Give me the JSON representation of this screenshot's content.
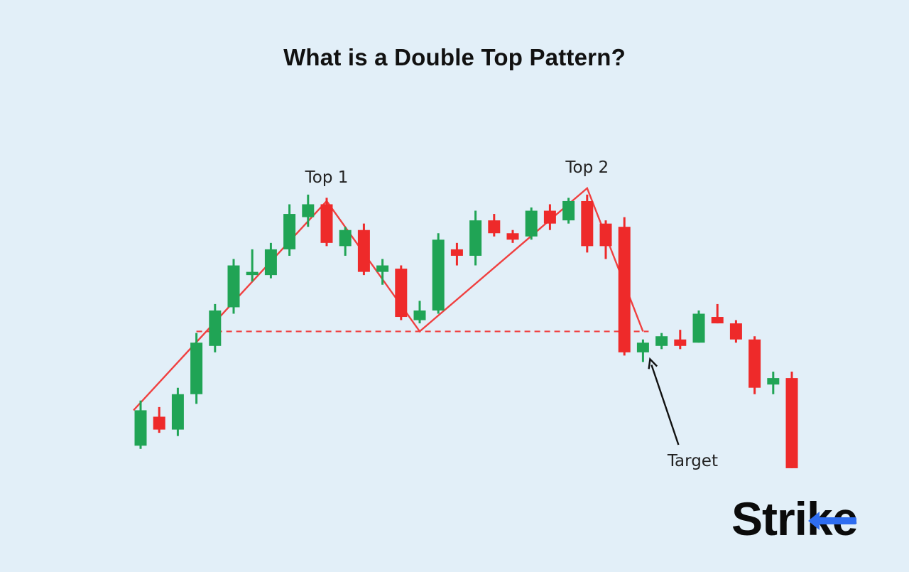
{
  "title": "What is a Double Top Pattern?",
  "brand": {
    "prefix": "Stri",
    "k": "k",
    "suffix": "e"
  },
  "colors": {
    "background": "#e2eff8",
    "bullish": "#20a455",
    "bearish": "#ee2a2a",
    "pattern_line": "#f04040",
    "arrow": "#111111",
    "brand_accent": "#2f6df0"
  },
  "chart_data": {
    "type": "candlestick",
    "title": "What is a Double Top Pattern?",
    "xlabel": "",
    "ylabel": "",
    "ylim": [
      0,
      100
    ],
    "grid": false,
    "axes_visible": false,
    "annotations": [
      {
        "text": "Top 1",
        "near_candle": 10
      },
      {
        "text": "Top 2",
        "near_candle": 24
      },
      {
        "text": "Target",
        "arrow_to_candle": 27
      }
    ],
    "neckline_level": 44.5,
    "pattern_points": [
      {
        "candle": 0,
        "value": 20
      },
      {
        "candle": 10,
        "value": 85
      },
      {
        "candle": 15,
        "value": 44.5
      },
      {
        "candle": 24,
        "value": 89
      },
      {
        "candle": 27,
        "value": 44.5
      }
    ],
    "candles": [
      {
        "open": 9,
        "high": 23,
        "low": 8,
        "close": 20
      },
      {
        "open": 18,
        "high": 21,
        "low": 13,
        "close": 14
      },
      {
        "open": 14,
        "high": 27,
        "low": 12,
        "close": 25
      },
      {
        "open": 25,
        "high": 44,
        "low": 22,
        "close": 41
      },
      {
        "open": 40,
        "high": 53,
        "low": 38,
        "close": 51
      },
      {
        "open": 52,
        "high": 67,
        "low": 50,
        "close": 65
      },
      {
        "open": 62,
        "high": 70,
        "low": 60,
        "close": 63
      },
      {
        "open": 62,
        "high": 72,
        "low": 61,
        "close": 70
      },
      {
        "open": 70,
        "high": 84,
        "low": 68,
        "close": 81
      },
      {
        "open": 80,
        "high": 87,
        "low": 77,
        "close": 84
      },
      {
        "open": 84,
        "high": 86,
        "low": 71,
        "close": 72
      },
      {
        "open": 71,
        "high": 77,
        "low": 68,
        "close": 76
      },
      {
        "open": 76,
        "high": 78,
        "low": 62,
        "close": 63
      },
      {
        "open": 63,
        "high": 67,
        "low": 59,
        "close": 65
      },
      {
        "open": 64,
        "high": 65,
        "low": 48,
        "close": 49
      },
      {
        "open": 48,
        "high": 54,
        "low": 47,
        "close": 51
      },
      {
        "open": 51,
        "high": 75,
        "low": 50,
        "close": 73
      },
      {
        "open": 70,
        "high": 72,
        "low": 65,
        "close": 68
      },
      {
        "open": 68,
        "high": 82,
        "low": 65,
        "close": 79
      },
      {
        "open": 79,
        "high": 81,
        "low": 74,
        "close": 75
      },
      {
        "open": 75,
        "high": 76,
        "low": 72,
        "close": 73
      },
      {
        "open": 74,
        "high": 83,
        "low": 73,
        "close": 82
      },
      {
        "open": 82,
        "high": 84,
        "low": 76,
        "close": 78
      },
      {
        "open": 79,
        "high": 86,
        "low": 78,
        "close": 85
      },
      {
        "open": 85,
        "high": 87,
        "low": 69,
        "close": 71
      },
      {
        "open": 78,
        "high": 79,
        "low": 67,
        "close": 71
      },
      {
        "open": 77,
        "high": 80,
        "low": 37,
        "close": 38
      },
      {
        "open": 38,
        "high": 42,
        "low": 35,
        "close": 41
      },
      {
        "open": 40,
        "high": 44,
        "low": 39,
        "close": 43
      },
      {
        "open": 42,
        "high": 45,
        "low": 39,
        "close": 40
      },
      {
        "open": 41,
        "high": 51,
        "low": 41,
        "close": 50
      },
      {
        "open": 49,
        "high": 53,
        "low": 47,
        "close": 47
      },
      {
        "open": 47,
        "high": 48,
        "low": 41,
        "close": 42
      },
      {
        "open": 42,
        "high": 43,
        "low": 25,
        "close": 27
      },
      {
        "open": 28,
        "high": 32,
        "low": 25,
        "close": 30
      },
      {
        "open": 30,
        "high": 32,
        "low": 2,
        "close": 2
      }
    ]
  }
}
